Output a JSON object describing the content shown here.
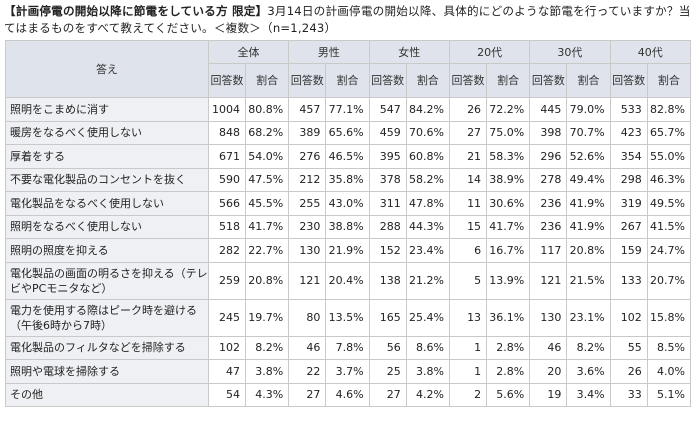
{
  "title_bold": "【計画停電の開始以降に節電をしている方 限定】",
  "title_rest": "3月14日の計画停電の開始以降、具体的にどのような節電を行っていますか？当てはまるものをすべて教えてください。＜複数＞（n=1,243）",
  "answer_header": "答え",
  "groups": [
    "全体",
    "男性",
    "女性",
    "20代",
    "30代",
    "40代"
  ],
  "count_label": "回答数",
  "ratio_label": "割合",
  "rows": [
    {
      "label": "照明をこまめに消す",
      "vals": [
        "1004",
        "80.8%",
        "457",
        "77.1%",
        "547",
        "84.2%",
        "26",
        "72.2%",
        "445",
        "79.0%",
        "533",
        "82.8%"
      ]
    },
    {
      "label": "暖房をなるべく使用しない",
      "vals": [
        "848",
        "68.2%",
        "389",
        "65.6%",
        "459",
        "70.6%",
        "27",
        "75.0%",
        "398",
        "70.7%",
        "423",
        "65.7%"
      ]
    },
    {
      "label": "厚着をする",
      "vals": [
        "671",
        "54.0%",
        "276",
        "46.5%",
        "395",
        "60.8%",
        "21",
        "58.3%",
        "296",
        "52.6%",
        "354",
        "55.0%"
      ]
    },
    {
      "label": "不要な電化製品のコンセントを抜く",
      "vals": [
        "590",
        "47.5%",
        "212",
        "35.8%",
        "378",
        "58.2%",
        "14",
        "38.9%",
        "278",
        "49.4%",
        "298",
        "46.3%"
      ]
    },
    {
      "label": "電化製品をなるべく使用しない",
      "vals": [
        "566",
        "45.5%",
        "255",
        "43.0%",
        "311",
        "47.8%",
        "11",
        "30.6%",
        "236",
        "41.9%",
        "319",
        "49.5%"
      ]
    },
    {
      "label": "照明をなるべく使用しない",
      "vals": [
        "518",
        "41.7%",
        "230",
        "38.8%",
        "288",
        "44.3%",
        "15",
        "41.7%",
        "236",
        "41.9%",
        "267",
        "41.5%"
      ]
    },
    {
      "label": "照明の照度を抑える",
      "vals": [
        "282",
        "22.7%",
        "130",
        "21.9%",
        "152",
        "23.4%",
        "6",
        "16.7%",
        "117",
        "20.8%",
        "159",
        "24.7%"
      ]
    },
    {
      "label": "電化製品の画面の明るさを抑える（テレビやPCモニタなど）",
      "vals": [
        "259",
        "20.8%",
        "121",
        "20.4%",
        "138",
        "21.2%",
        "5",
        "13.9%",
        "121",
        "21.5%",
        "133",
        "20.7%"
      ],
      "tall": true
    },
    {
      "label": "電力を使用する際はピーク時を避ける（午後6時から7時）",
      "vals": [
        "245",
        "19.7%",
        "80",
        "13.5%",
        "165",
        "25.4%",
        "13",
        "36.1%",
        "130",
        "23.1%",
        "102",
        "15.8%"
      ],
      "tall": true
    },
    {
      "label": "電化製品のフィルタなどを掃除する",
      "vals": [
        "102",
        "8.2%",
        "46",
        "7.8%",
        "56",
        "8.6%",
        "1",
        "2.8%",
        "46",
        "8.2%",
        "55",
        "8.5%"
      ]
    },
    {
      "label": "照明や電球を掃除する",
      "vals": [
        "47",
        "3.8%",
        "22",
        "3.7%",
        "25",
        "3.8%",
        "1",
        "2.8%",
        "20",
        "3.6%",
        "26",
        "4.0%"
      ]
    },
    {
      "label": "その他",
      "vals": [
        "54",
        "4.3%",
        "27",
        "4.6%",
        "27",
        "4.2%",
        "2",
        "5.6%",
        "19",
        "3.4%",
        "33",
        "5.1%"
      ]
    }
  ]
}
